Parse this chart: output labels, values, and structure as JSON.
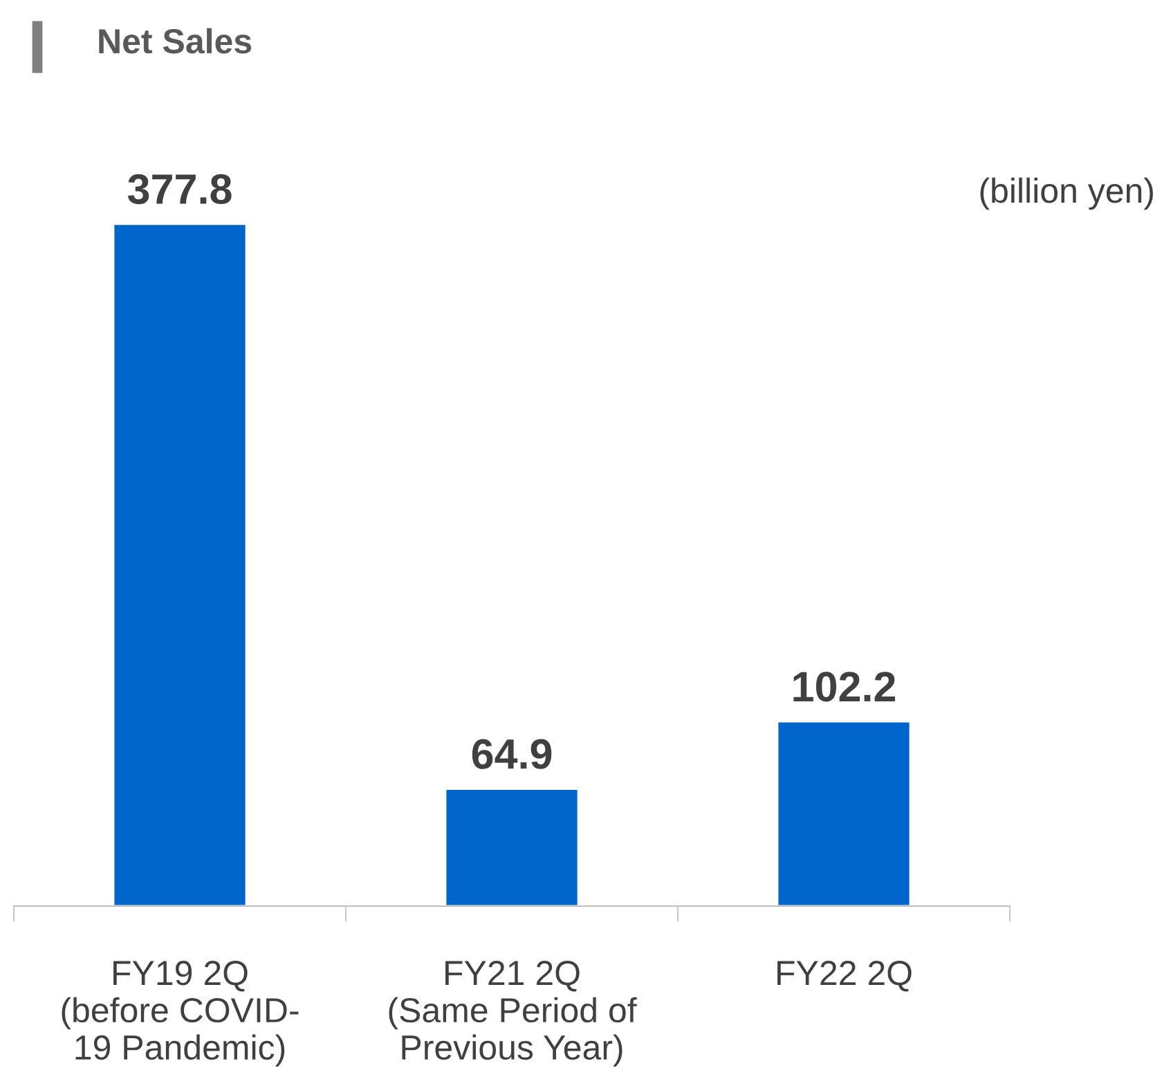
{
  "chart_data": {
    "type": "bar",
    "title": "Net Sales",
    "categories": [
      "FY19 2Q\n(before COVID-\n19 Pandemic)",
      "FY21 2Q\n(Same Period of\nPrevious Year)",
      "FY22 2Q"
    ],
    "values": [
      377.8,
      64.9,
      102.2
    ],
    "color": "#0066cc",
    "data_labels": true,
    "tick_labels": "x",
    "grid": false,
    "legend": false,
    "annotations": [
      "(billion yen)"
    ]
  }
}
